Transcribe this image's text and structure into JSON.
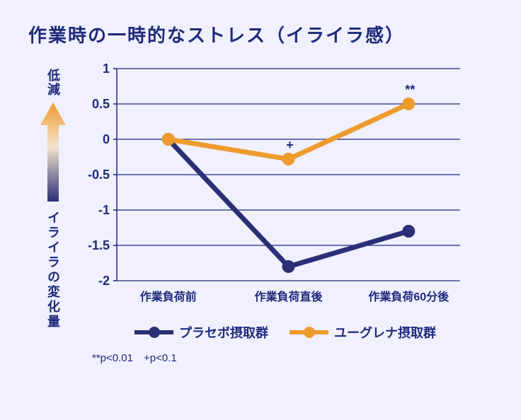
{
  "chart": {
    "type": "line",
    "title": "作業時の一時的なストレス（イライラ感）",
    "title_color": "#1e2a7a",
    "title_fontsize": 26,
    "background_color": "#f0f0ff",
    "plot_background": "#f0f0ff",
    "grid_color": "#1e2a7a",
    "axis_color": "#1e2a7a",
    "ylim": [
      -2,
      1
    ],
    "ytick_step": 0.5,
    "yticks": [
      1,
      0.5,
      0,
      -0.5,
      -1,
      -1.5,
      -2
    ],
    "categories": [
      "作業負荷前",
      "作業負荷直後",
      "作業負荷60分後"
    ],
    "x_label_fontsize": 16,
    "y_tick_fontsize": 18,
    "y_axis_top_label": "低減",
    "y_axis_bottom_label": "イライラの変化量",
    "arrow_gradient_top": "#ed9b2d",
    "arrow_gradient_bottom": "#2b2f76",
    "series": [
      {
        "name": "プラセボ摂取群",
        "color": "#2b2f76",
        "line_width": 7,
        "marker_size": 18,
        "values": [
          0,
          -1.8,
          -1.3
        ],
        "annotations": [
          "",
          "",
          ""
        ]
      },
      {
        "name": "ユーグレナ摂取群",
        "color": "#ed9b2d",
        "line_width": 7,
        "marker_size": 18,
        "values": [
          0,
          -0.28,
          0.5
        ],
        "annotations": [
          "",
          "+",
          "**"
        ]
      }
    ],
    "legend_fontsize": 18,
    "pvalue_note": "**p<0.01　+p<0.1",
    "pvalue_fontsize": 15
  }
}
